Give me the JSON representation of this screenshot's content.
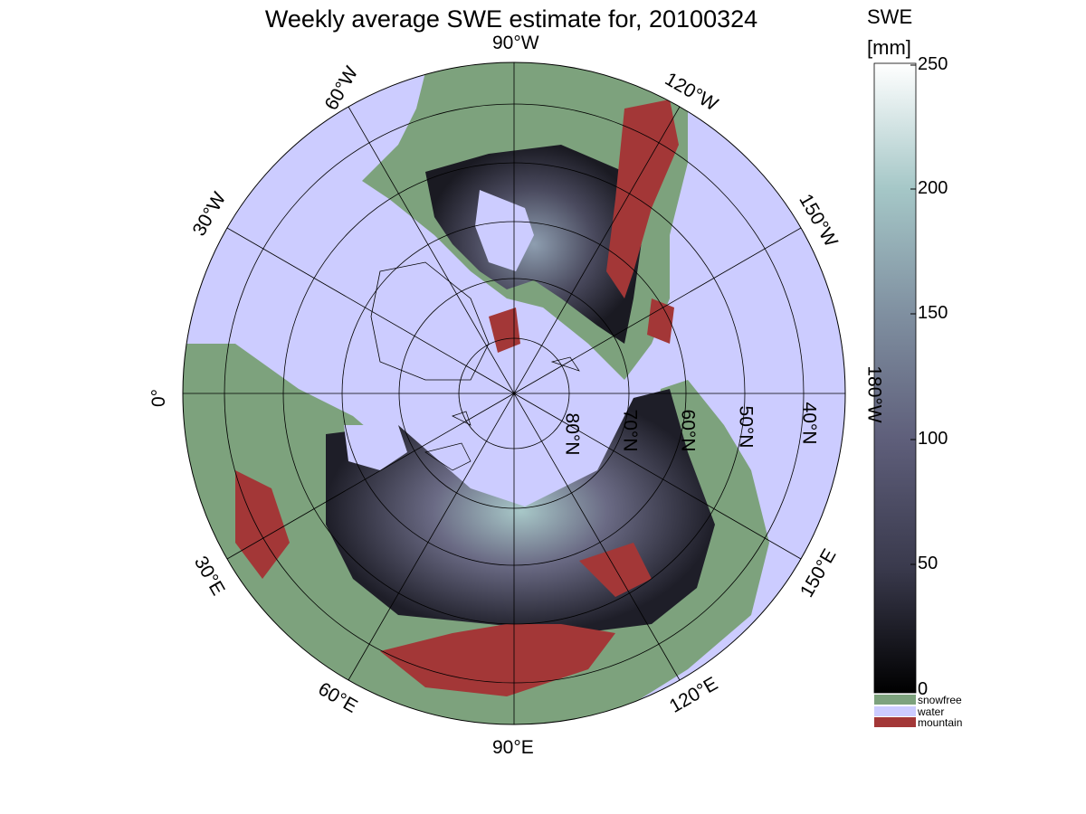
{
  "title": "Weekly average SWE estimate for, 20100324",
  "colorbar": {
    "label_line1": "SWE",
    "label_line2": "[mm]",
    "ticks": [
      "250",
      "200",
      "150",
      "100",
      "50",
      "0"
    ],
    "gradient_colors": [
      "#000000",
      "#3a3a4d",
      "#5e5e7a",
      "#7f8fa0",
      "#a5c7c7",
      "#ffffff"
    ]
  },
  "legend": [
    {
      "label": "snowfree",
      "color": "#7da27d"
    },
    {
      "label": "water",
      "color": "#ccccff"
    },
    {
      "label": "mountain",
      "color": "#a33737"
    }
  ],
  "longitude_labels": {
    "lon_90w": "90°W",
    "lon_60w": "60°W",
    "lon_30w": "30°W",
    "lon_0": "0°",
    "lon_30e": "30°E",
    "lon_60e": "60°E",
    "lon_90e": "90°E",
    "lon_120e": "120°E",
    "lon_150e": "150°E",
    "lon_180w": "180°W",
    "lon_150w": "150°W",
    "lon_120w": "120°W"
  },
  "latitude_labels": {
    "lat_80": "80°N",
    "lat_70": "70°N",
    "lat_60": "60°N",
    "lat_50": "50°N",
    "lat_40": "40°N"
  },
  "colors": {
    "water": "#ccccff",
    "snowfree": "#7da27d",
    "mountain": "#a33737",
    "snow_dark": "#1e1e28",
    "snow_mid": "#5a5a70",
    "snow_light": "#a8c8c8"
  }
}
